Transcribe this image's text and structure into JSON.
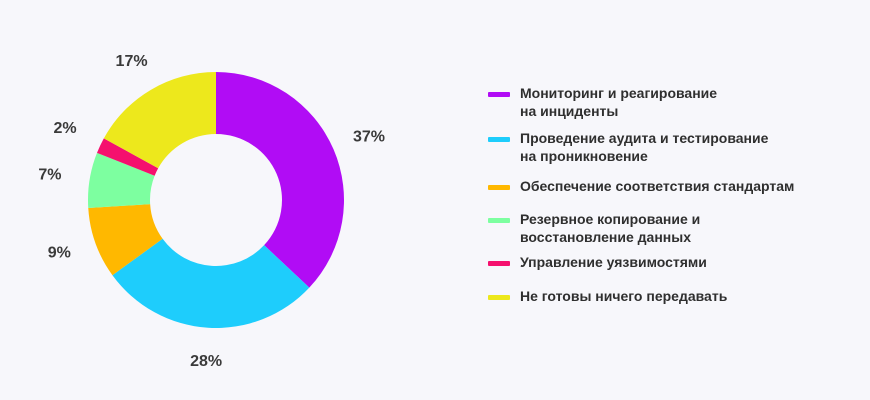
{
  "chart_data": {
    "type": "pie",
    "donut": true,
    "legend_position": "right",
    "series": [
      {
        "name": "Мониторинг и реагирование на инциденты",
        "value": 37,
        "label": "37%",
        "color": "#b10cf5"
      },
      {
        "name": "Проведение аудита и тестирование на проникновение",
        "value": 28,
        "label": "28%",
        "color": "#1ecdfc"
      },
      {
        "name": "Обеспечение соответствия стандартам",
        "value": 9,
        "label": "9%",
        "color": "#ffb800"
      },
      {
        "name": "Резервное копирование и восстановление данных",
        "value": 7,
        "label": "7%",
        "color": "#7dffa0"
      },
      {
        "name": "Управление уязвимостями",
        "value": 2,
        "label": "2%",
        "color": "#f5106e"
      },
      {
        "name": "Не готовы ничего передавать",
        "value": 17,
        "label": "17%",
        "color": "#ede81c"
      }
    ]
  },
  "legend": {
    "items": [
      {
        "line1": "Мониторинг и реагирование",
        "line2": "на инциденты",
        "color": "#b10cf5"
      },
      {
        "line1": "Проведение аудита и тестирование",
        "line2": "на проникновение",
        "color": "#1ecdfc"
      },
      {
        "line1": "Обеспечение соответствия стандартам",
        "line2": "",
        "color": "#ffb800"
      },
      {
        "line1": "Резервное копирование и",
        "line2": "восстановление данных",
        "color": "#7dffa0"
      },
      {
        "line1": "Управление уязвимостями",
        "line2": "",
        "color": "#f5106e"
      },
      {
        "line1": "Не готовы ничего передавать",
        "line2": "",
        "color": "#ede81c"
      }
    ]
  }
}
